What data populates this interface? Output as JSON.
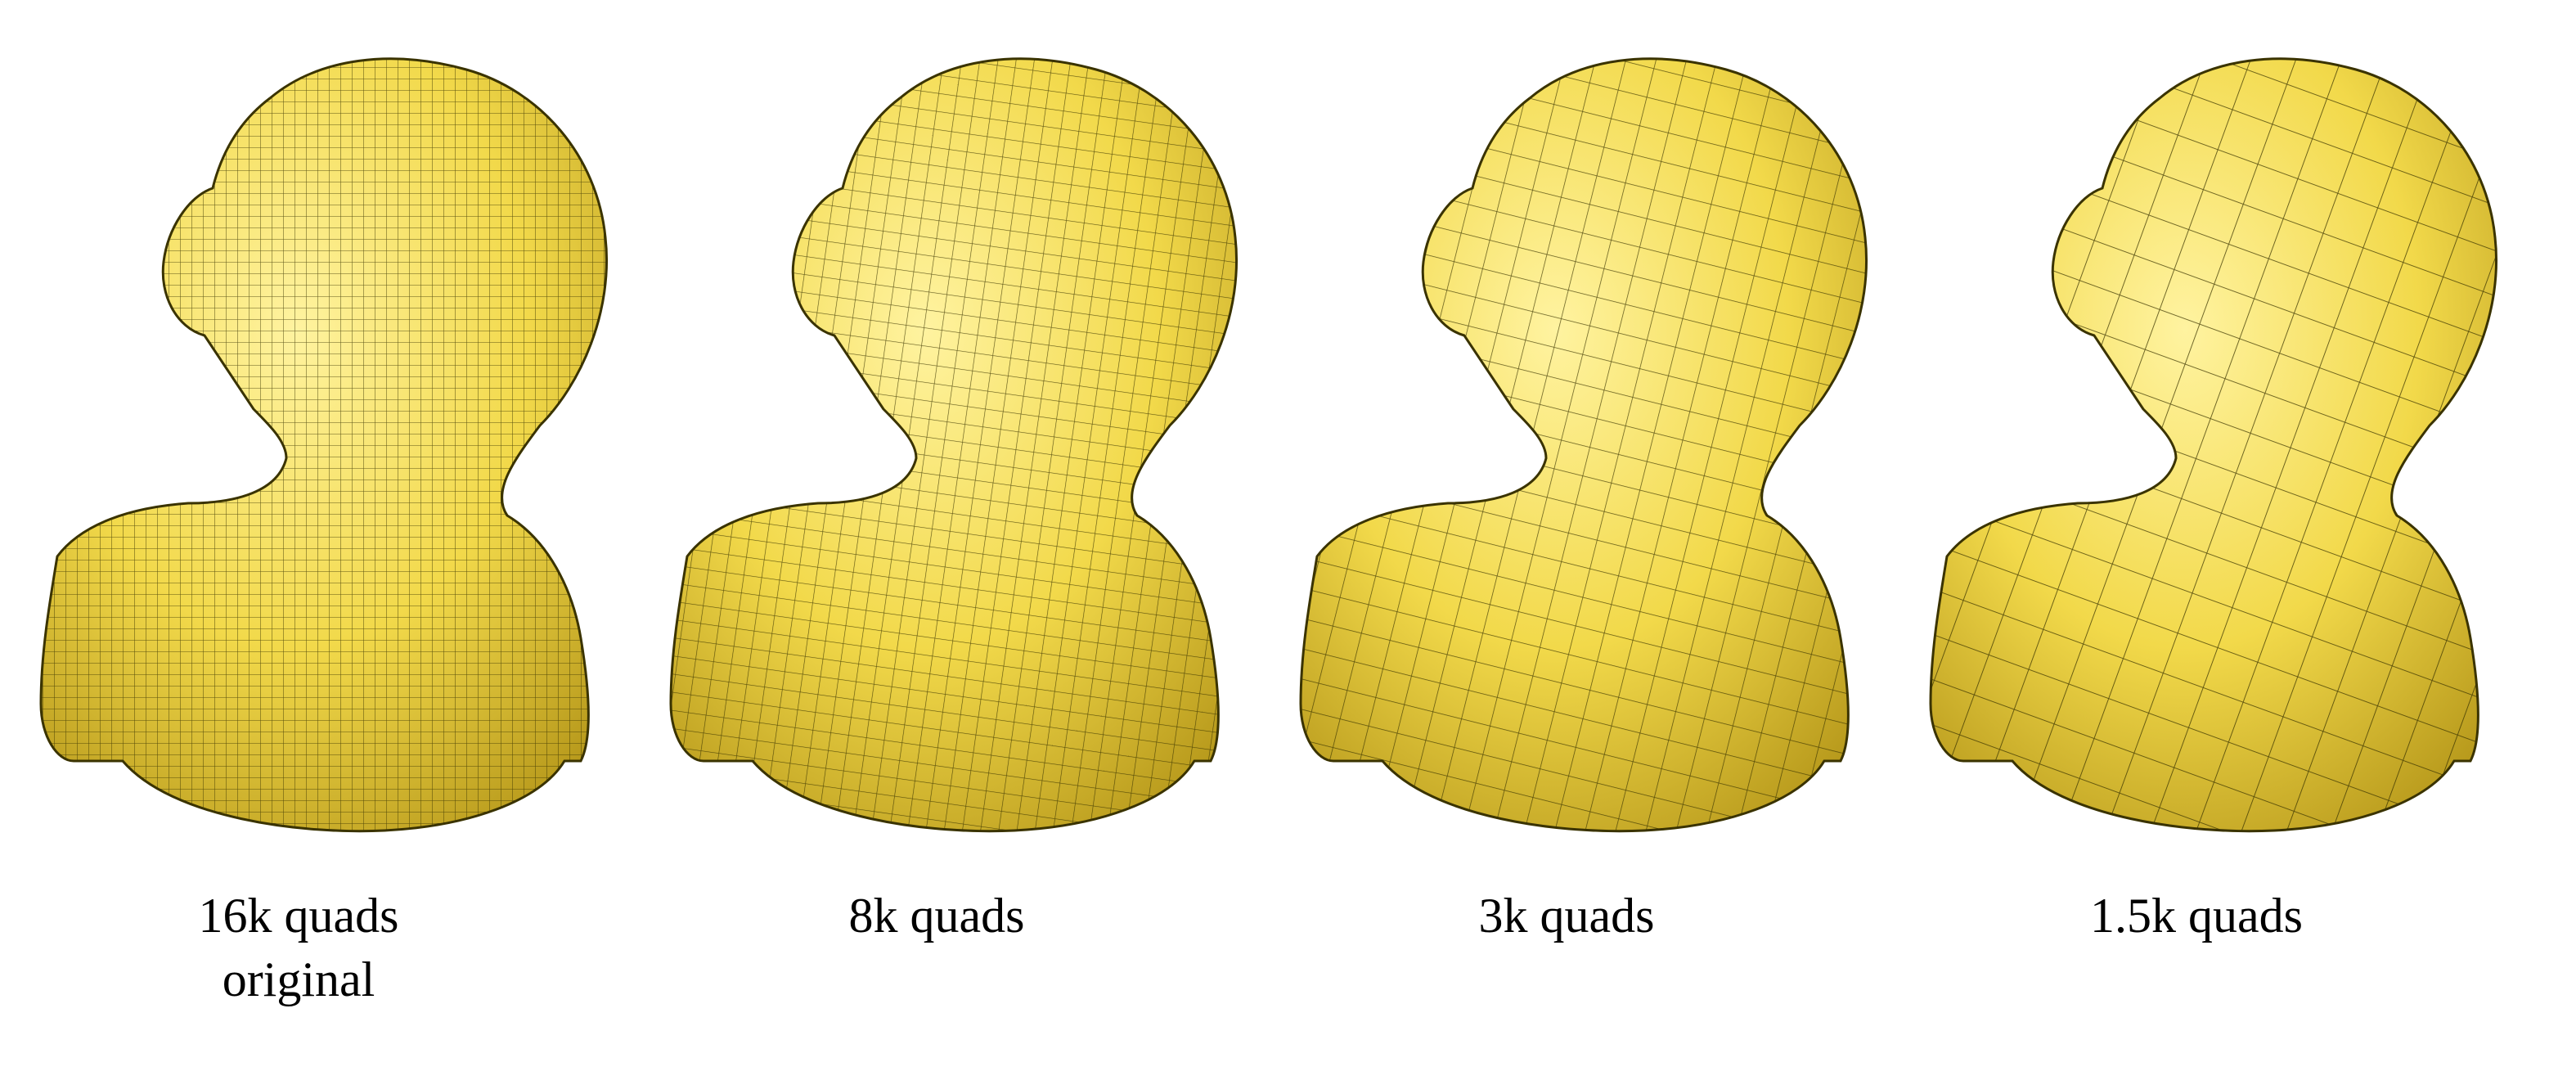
{
  "figure": {
    "panels": [
      {
        "caption_line1": "16k quads",
        "caption_line2": "original",
        "mesh_resolution": "fine"
      },
      {
        "caption_line1": "8k quads",
        "caption_line2": "",
        "mesh_resolution": "medium"
      },
      {
        "caption_line1": "3k quads",
        "caption_line2": "",
        "mesh_resolution": "coarse"
      },
      {
        "caption_line1": "1.5k quads",
        "caption_line2": "",
        "mesh_resolution": "very-coarse"
      }
    ],
    "colors": {
      "mesh_fill": "#f2d94a",
      "mesh_highlight": "#fff3a0",
      "mesh_shadow": "#b89a1c",
      "edge": "#3a3300",
      "background": "#ffffff"
    }
  }
}
